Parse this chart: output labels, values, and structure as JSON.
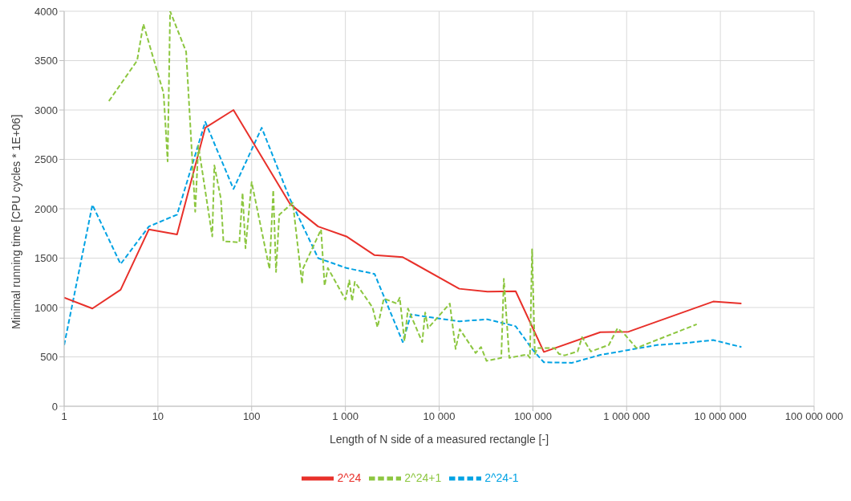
{
  "chart_data": {
    "type": "line",
    "xlabel": "Length of N side of a measured rectangle [-]",
    "ylabel": "Minimal running time [CPU cycles * 1E+06]",
    "log": "x",
    "xlim": [
      1,
      100000000
    ],
    "xticks": [
      1,
      10,
      100,
      {
        "value": 1000,
        "label": "1 000"
      },
      {
        "value": 10000,
        "label": "10 000"
      },
      {
        "value": 100000,
        "label": "100 000"
      },
      {
        "value": 1000000,
        "label": "1 000 000"
      },
      {
        "value": 10000000,
        "label": "10 000 000"
      },
      {
        "value": 100000000,
        "label": "100 000 000"
      }
    ],
    "ylim": [
      0,
      4000
    ],
    "yticks": [
      0,
      500,
      1000,
      1500,
      2000,
      2500,
      3000,
      3500,
      4000
    ],
    "grid": true,
    "legend": "bottom",
    "series": [
      {
        "name": "2^24-1",
        "color": "#00a2e3",
        "line_style": "dashed",
        "x": [
          1,
          2,
          4,
          8,
          16,
          32,
          64,
          128,
          256,
          512,
          1024,
          2048,
          4096,
          5000,
          8192,
          16384,
          32768,
          65536,
          100000,
          131072,
          262144,
          524288,
          1048576,
          2097152,
          4194304,
          8388608,
          16777216
        ],
        "values": [
          620,
          2040,
          1440,
          1820,
          1940,
          2880,
          2200,
          2820,
          2100,
          1500,
          1400,
          1340,
          650,
          930,
          900,
          860,
          880,
          810,
          570,
          445,
          440,
          520,
          570,
          620,
          640,
          670,
          600
        ]
      },
      {
        "name": "2^24",
        "color": "#e8302a",
        "line_style": "solid",
        "x": [
          1,
          2,
          4,
          8,
          16,
          32,
          64,
          256,
          512,
          1024,
          2048,
          4096,
          16384,
          32768,
          65536,
          131072,
          524288,
          1048576,
          8388608,
          16777216
        ],
        "values": [
          1100,
          990,
          1180,
          1790,
          1740,
          2820,
          3000,
          2050,
          1820,
          1720,
          1530,
          1510,
          1190,
          1160,
          1165,
          550,
          750,
          755,
          1060,
          1040
        ]
      },
      {
        "name": "2^24+1",
        "color": "#8cc63f",
        "line_style": "dashed",
        "x": [
          3,
          6,
          7,
          11.5,
          12.7,
          13.5,
          20,
          25,
          27,
          38,
          40,
          47,
          50,
          74,
          80,
          86,
          100,
          155,
          170,
          182,
          197,
          275,
          345,
          355,
          550,
          600,
          650,
          1000,
          1100,
          1180,
          1260,
          1950,
          2200,
          2570,
          3550,
          3800,
          4270,
          4650,
          6600,
          7100,
          7600,
          13000,
          15000,
          16600,
          24500,
          28000,
          32000,
          46000,
          49000,
          56000,
          87000,
          93000,
          98000,
          105000,
          112000,
          170000,
          190000,
          218000,
          300000,
          335000,
          415000,
          645000,
          800000,
          950000,
          1270000,
          5600000
        ],
        "values": [
          3090,
          3500,
          3870,
          3170,
          2480,
          4000,
          3590,
          1970,
          2640,
          1720,
          2440,
          2100,
          1670,
          1660,
          2160,
          1600,
          2270,
          1390,
          2190,
          1360,
          1940,
          2060,
          1240,
          1400,
          1790,
          1220,
          1400,
          1080,
          1275,
          1065,
          1260,
          1000,
          800,
          1090,
          1040,
          1100,
          660,
          990,
          650,
          950,
          790,
          1040,
          580,
          780,
          540,
          600,
          460,
          490,
          1290,
          490,
          525,
          490,
          1590,
          530,
          590,
          590,
          530,
          515,
          555,
          700,
          555,
          620,
          790,
          730,
          590,
          830
        ]
      }
    ]
  }
}
